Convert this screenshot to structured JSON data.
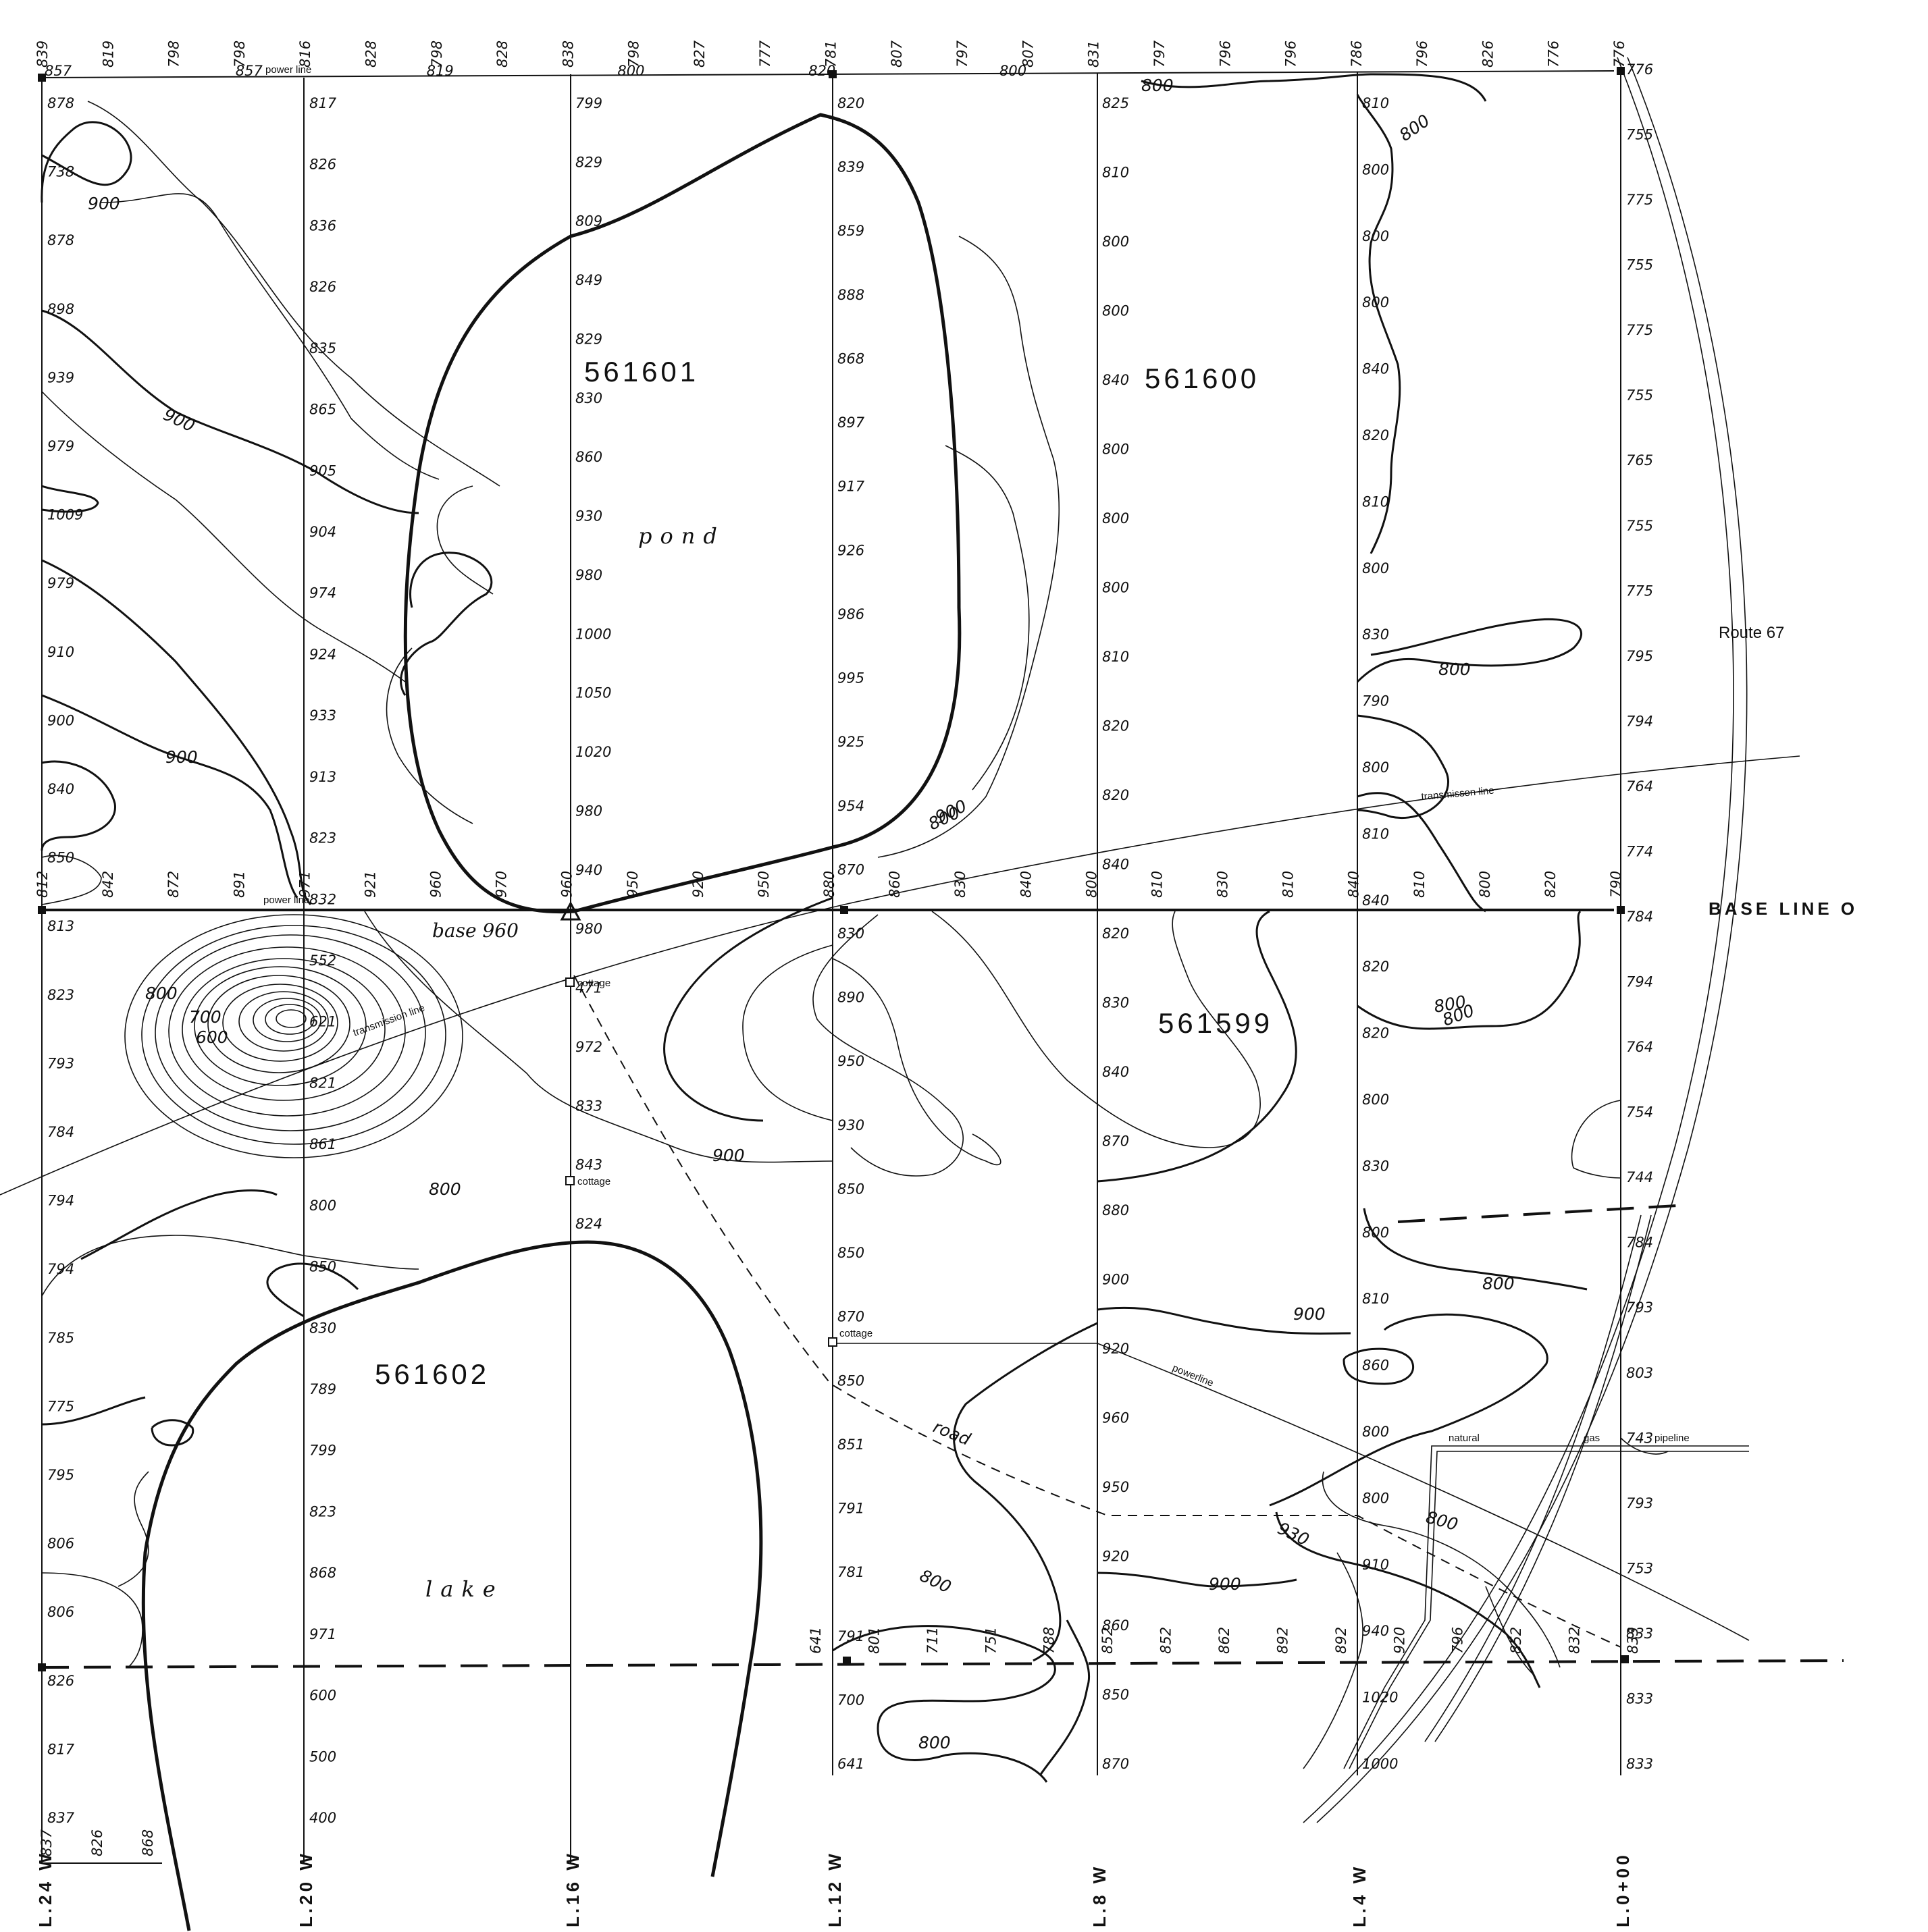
{
  "grid": {
    "base_line_label": "BASE LINE O",
    "line_labels": [
      "L.24 W",
      "L.20 W",
      "L.16 W",
      "L.12 W",
      "L.8 W",
      "L.4 W",
      "L.0+00"
    ]
  },
  "claims": [
    {
      "id": "561601"
    },
    {
      "id": "561600"
    },
    {
      "id": "561599"
    },
    {
      "id": "561602"
    }
  ],
  "water": {
    "pond": "pond",
    "lake": "lake"
  },
  "features": {
    "base_station": "base 960",
    "route": "Route 67",
    "power_line_top": "power line",
    "power_line_base": "power line",
    "transmission_line_east": "transmisson line",
    "transmission_line_west": "transmission line",
    "powerline_south": "powerline",
    "road": "road",
    "pipeline_1": "natural",
    "pipeline_2": "gas",
    "pipeline_3": "pipeline",
    "cottage_1": "cottage",
    "cottage_2": "cottage",
    "cottage_3": "cottage"
  },
  "readings": {
    "top_line": [
      "839",
      "819",
      "798",
      "798",
      "816",
      "828",
      "798",
      "828",
      "838",
      "798",
      "827",
      "777",
      "781",
      "807",
      "797",
      "807",
      "831",
      "797",
      "796",
      "796",
      "786",
      "796",
      "826",
      "776",
      "776"
    ],
    "top_row": [
      "857",
      "857",
      "819",
      "800",
      "820",
      "800"
    ],
    "base_line": [
      "812",
      "842",
      "872",
      "891",
      "971",
      "921",
      "960",
      "970",
      "960",
      "950",
      "920",
      "950",
      "880",
      "860",
      "830",
      "840",
      "800",
      "810",
      "830",
      "810",
      "840",
      "810",
      "800",
      "820",
      "790"
    ],
    "south_line": [
      "641",
      "801",
      "711",
      "751",
      "788",
      "852",
      "852",
      "862",
      "892",
      "892",
      "920",
      "796",
      "852",
      "832",
      "833"
    ],
    "bottom_row": [
      "837",
      "826",
      "868"
    ],
    "l24": [
      "878",
      "738",
      "878",
      "898",
      "939",
      "979",
      "1009",
      "979",
      "910",
      "900",
      "840",
      "850",
      "813",
      "823",
      "793",
      "784",
      "794",
      "794",
      "785",
      "775",
      "795",
      "806",
      "806",
      "826",
      "817",
      "837"
    ],
    "l20": [
      "817",
      "826",
      "836",
      "826",
      "835",
      "865",
      "905",
      "904",
      "974",
      "924",
      "933",
      "913",
      "823",
      "832",
      "552",
      "621",
      "821",
      "861",
      "800",
      "850",
      "830",
      "789",
      "799",
      "823",
      "868",
      "971",
      "600",
      "500",
      "400"
    ],
    "l16": [
      "799",
      "829",
      "809",
      "849",
      "829",
      "830",
      "860",
      "930",
      "980",
      "1000",
      "1050",
      "1020",
      "980",
      "940",
      "980",
      "471",
      "972",
      "833",
      "843",
      "824"
    ],
    "l12": [
      "820",
      "839",
      "859",
      "888",
      "868",
      "897",
      "917",
      "926",
      "986",
      "995",
      "925",
      "954",
      "870",
      "830",
      "890",
      "950",
      "930",
      "850",
      "850",
      "870",
      "850",
      "851",
      "791",
      "781",
      "791",
      "700",
      "641"
    ],
    "l8": [
      "825",
      "810",
      "800",
      "800",
      "840",
      "800",
      "800",
      "800",
      "810",
      "820",
      "820",
      "840",
      "820",
      "830",
      "840",
      "870",
      "880",
      "900",
      "920",
      "960",
      "950",
      "920",
      "860",
      "850",
      "870"
    ],
    "l4": [
      "810",
      "800",
      "800",
      "800",
      "840",
      "820",
      "810",
      "800",
      "830",
      "790",
      "800",
      "810",
      "840",
      "820",
      "820",
      "800",
      "830",
      "800",
      "810",
      "860",
      "800",
      "800",
      "910",
      "940",
      "1020",
      "1000"
    ],
    "l0": [
      "776",
      "755",
      "775",
      "755",
      "775",
      "755",
      "765",
      "755",
      "775",
      "795",
      "794",
      "764",
      "774",
      "784",
      "794",
      "764",
      "754",
      "744",
      "784",
      "793",
      "803",
      "743",
      "793",
      "753",
      "833",
      "833",
      "833"
    ]
  },
  "contour_labels": [
    "900",
    "900",
    "900",
    "800",
    "700",
    "600",
    "800",
    "900",
    "800",
    "900",
    "800",
    "800",
    "800",
    "800",
    "800",
    "800",
    "800",
    "900",
    "800",
    "900",
    "930",
    "800"
  ]
}
